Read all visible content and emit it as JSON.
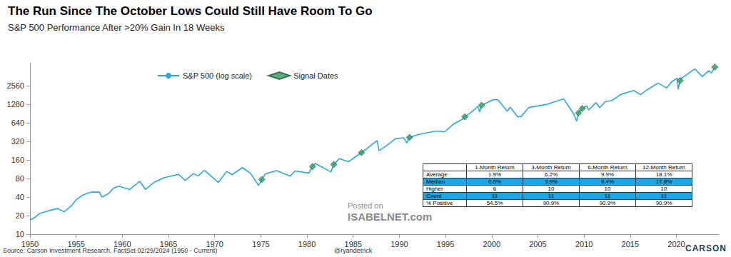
{
  "chart_data": {
    "type": "line",
    "title": "The Run Since The October Lows Could Still Have Room To Go",
    "subtitle": "S&P 500 Performance After >20% Gain In 18 Weeks",
    "log": "y",
    "grid": false,
    "legend": "top",
    "xlim": [
      1950,
      2024.6
    ],
    "xticks": [
      1950,
      1955,
      1960,
      1965,
      1970,
      1975,
      1980,
      1985,
      1990,
      1995,
      2000,
      2005,
      2010,
      2015,
      2020
    ],
    "ylim": [
      10,
      6000
    ],
    "yticks": [
      10,
      20,
      40,
      80,
      160,
      320,
      640,
      1280,
      2560
    ],
    "x": [
      1950.0,
      1950.5,
      1951.0,
      1952.0,
      1953.0,
      1953.7,
      1954.5,
      1955.0,
      1955.7,
      1956.6,
      1957.5,
      1957.8,
      1958.5,
      1959.0,
      1959.6,
      1960.8,
      1961.9,
      1962.5,
      1963.5,
      1964.5,
      1966.1,
      1966.8,
      1967.7,
      1968.2,
      1968.9,
      1970.4,
      1971.3,
      1971.9,
      1973.0,
      1973.9,
      1974.75,
      1975.1,
      1975.5,
      1976.7,
      1978.2,
      1978.7,
      1979.8,
      1980.2,
      1980.6,
      1980.9,
      1982.6,
      1982.9,
      1983.5,
      1984.5,
      1985.9,
      1986.5,
      1987.6,
      1987.8,
      1988.5,
      1989.6,
      1990.5,
      1990.8,
      1991.1,
      1992.0,
      1993.0,
      1994.0,
      1994.9,
      1995.9,
      1996.9,
      1997.1,
      1997.8,
      1998.5,
      1998.7,
      1998.9,
      2000.2,
      2000.7,
      2001.7,
      2002.0,
      2002.8,
      2003.2,
      2004.0,
      2005.0,
      2006.0,
      2007.8,
      2008.9,
      2009.2,
      2009.4,
      2009.8,
      2010.3,
      2010.5,
      2011.3,
      2011.7,
      2012.3,
      2013.0,
      2014.0,
      2015.4,
      2016.1,
      2017.0,
      2018.0,
      2018.95,
      2019.5,
      2020.1,
      2020.2,
      2020.4,
      2020.6,
      2021.0,
      2022.0,
      2022.8,
      2023.5,
      2023.8,
      2024.16
    ],
    "series": [
      {
        "name": "S&P 500 (log scale)",
        "type": "line",
        "color": "#29a8e0",
        "values": [
          17,
          18.5,
          21.5,
          24,
          26,
          23,
          29,
          36,
          43,
          48,
          48,
          40,
          45,
          55,
          60,
          53,
          72,
          53,
          70,
          82,
          93,
          74,
          96,
          88,
          108,
          69,
          104,
          92,
          120,
          96,
          62,
          77,
          95,
          107,
          87,
          106,
          100,
          98,
          125,
          140,
          102,
          135,
          168,
          150,
          210,
          245,
          330,
          225,
          265,
          355,
          365,
          300,
          370,
          410,
          440,
          470,
          455,
          615,
          740,
          800,
          950,
          1180,
          960,
          1230,
          1520,
          1500,
          980,
          1150,
          800,
          810,
          1130,
          1200,
          1280,
          1560,
          880,
          680,
          920,
          1090,
          1200,
          1030,
          1360,
          1120,
          1410,
          1460,
          1850,
          2130,
          1830,
          2270,
          2820,
          2350,
          2980,
          3380,
          2240,
          3100,
          3400,
          3750,
          4790,
          3580,
          4450,
          4120,
          5100
        ]
      },
      {
        "name": "Signal Dates",
        "type": "scatter",
        "marker": "diamond",
        "color": "#2e9e5b",
        "x": [
          1975.1,
          1980.6,
          1982.9,
          1985.9,
          1991.1,
          1997.1,
          1998.9,
          2009.4,
          2009.8,
          2020.4,
          2024.16
        ],
        "values": [
          77,
          125,
          135,
          210,
          370,
          800,
          1230,
          920,
          1090,
          3100,
          5100
        ]
      }
    ]
  },
  "table": {
    "header": [
      "1-Month Return",
      "3-Month Return",
      "6-Month Return",
      "12-Month Return"
    ],
    "rows": [
      [
        "Average",
        "1.9%",
        "6.2%",
        "9.9%",
        "18.1%"
      ],
      [
        "Median",
        "0.5%",
        "3.9%",
        "9.4%",
        "17.8%"
      ],
      [
        "Higher",
        "6",
        "10",
        "10",
        "10"
      ],
      [
        "Count",
        "11",
        "11",
        "11",
        "11"
      ],
      [
        "% Positive",
        "54.5%",
        "90.9%",
        "90.9%",
        "90.9%"
      ]
    ]
  },
  "watermark": [
    "Posted on",
    "ISABELNET.com"
  ],
  "source": "Source: Carson Investment Research, FactSet 02/29/2024 (1950 - Current)",
  "credit": "@ryandetrick",
  "logo": "CARSON"
}
